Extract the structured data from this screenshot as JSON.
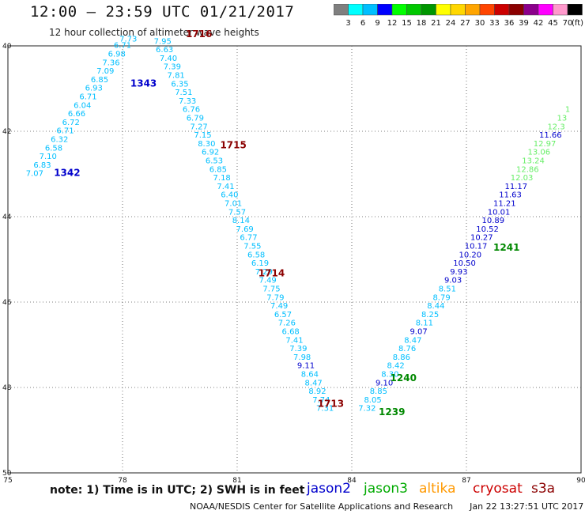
{
  "header": {
    "title": "12:00 — 23:59 UTC 01/21/2017",
    "subtitle": "12 hour collection of altimeter wave heights"
  },
  "color_scale": {
    "ticks": [
      "3",
      "6",
      "9",
      "12",
      "15",
      "18",
      "21",
      "24",
      "27",
      "30",
      "33",
      "36",
      "39",
      "42",
      "45",
      "70"
    ],
    "unit": "(ft)",
    "colors": [
      "#7f7f7f",
      "#00ffff",
      "#00bfff",
      "#0000ff",
      "#00ff00",
      "#00c800",
      "#009600",
      "#ffff00",
      "#ffd700",
      "#ffa500",
      "#ff4500",
      "#cc0000",
      "#8b0000",
      "#8b008b",
      "#ff00ff",
      "#ff99cc",
      "#000000"
    ]
  },
  "map": {
    "x_ticks": [
      "75",
      "78",
      "81",
      "84",
      "87",
      "90"
    ],
    "y_ticks": [
      "40",
      "42",
      "44",
      "46",
      "48",
      "50"
    ]
  },
  "chart_data": {
    "type": "scatter",
    "x_range": [
      75,
      90
    ],
    "y_range": [
      40,
      50
    ],
    "colors": {
      "c6": "#00bfff",
      "c9": "#00bfff",
      "c12": "#0000cc",
      "c15": "#66ee66",
      "c18": "#00aa00",
      "time_blue": "#0000cc",
      "time_red": "#8b0000",
      "time_green": "#008800"
    },
    "tracks": [
      {
        "name": "track-1342-1343",
        "points": [
          {
            "lon": 75.7,
            "lat": 43.05,
            "label": "7.07",
            "c": "c6"
          },
          {
            "lon": 75.9,
            "lat": 42.85,
            "label": "6.83",
            "c": "c6"
          },
          {
            "lon": 76.05,
            "lat": 42.65,
            "label": "7.10",
            "c": "c6"
          },
          {
            "lon": 76.2,
            "lat": 42.45,
            "label": "6.58",
            "c": "c6"
          },
          {
            "lon": 76.35,
            "lat": 42.25,
            "label": "6.32",
            "c": "c6"
          },
          {
            "lon": 76.5,
            "lat": 42.05,
            "label": "6.71",
            "c": "c6"
          },
          {
            "lon": 76.65,
            "lat": 41.85,
            "label": "6.72",
            "c": "c6"
          },
          {
            "lon": 76.8,
            "lat": 41.65,
            "label": "6.66",
            "c": "c6"
          },
          {
            "lon": 76.95,
            "lat": 41.45,
            "label": "6.04",
            "c": "c6"
          },
          {
            "lon": 77.1,
            "lat": 41.25,
            "label": "6.71",
            "c": "c6"
          },
          {
            "lon": 77.25,
            "lat": 41.05,
            "label": "6.93",
            "c": "c6"
          },
          {
            "lon": 77.4,
            "lat": 40.85,
            "label": "6.85",
            "c": "c6"
          },
          {
            "lon": 77.55,
            "lat": 40.65,
            "label": "7.09",
            "c": "c6"
          },
          {
            "lon": 77.7,
            "lat": 40.45,
            "label": "7.36",
            "c": "c6"
          },
          {
            "lon": 77.85,
            "lat": 40.25,
            "label": "6.98",
            "c": "c6"
          },
          {
            "lon": 78.0,
            "lat": 40.05,
            "label": "6.71",
            "c": "c6"
          },
          {
            "lon": 78.15,
            "lat": 39.9,
            "label": "7.73",
            "c": "c6"
          }
        ]
      },
      {
        "name": "track-1713-1716",
        "points": [
          {
            "lon": 79.05,
            "lat": 39.95,
            "label": "7.95",
            "c": "c6"
          },
          {
            "lon": 79.1,
            "lat": 40.15,
            "label": "6.63",
            "c": "c6"
          },
          {
            "lon": 79.2,
            "lat": 40.35,
            "label": "7.40",
            "c": "c6"
          },
          {
            "lon": 79.3,
            "lat": 40.55,
            "label": "7.39",
            "c": "c6"
          },
          {
            "lon": 79.4,
            "lat": 40.75,
            "label": "7.81",
            "c": "c6"
          },
          {
            "lon": 79.5,
            "lat": 40.95,
            "label": "6.35",
            "c": "c6"
          },
          {
            "lon": 79.6,
            "lat": 41.15,
            "label": "7.51",
            "c": "c6"
          },
          {
            "lon": 79.7,
            "lat": 41.35,
            "label": "7.33",
            "c": "c6"
          },
          {
            "lon": 79.8,
            "lat": 41.55,
            "label": "6.76",
            "c": "c6"
          },
          {
            "lon": 79.9,
            "lat": 41.75,
            "label": "6.79",
            "c": "c6"
          },
          {
            "lon": 80.0,
            "lat": 41.95,
            "label": "7.27",
            "c": "c6"
          },
          {
            "lon": 80.1,
            "lat": 42.15,
            "label": "7.15",
            "c": "c6"
          },
          {
            "lon": 80.2,
            "lat": 42.35,
            "label": "8.30",
            "c": "c6"
          },
          {
            "lon": 80.3,
            "lat": 42.55,
            "label": "6.92",
            "c": "c6"
          },
          {
            "lon": 80.4,
            "lat": 42.75,
            "label": "6.53",
            "c": "c6"
          },
          {
            "lon": 80.5,
            "lat": 42.95,
            "label": "6.85",
            "c": "c6"
          },
          {
            "lon": 80.6,
            "lat": 43.15,
            "label": "7.18",
            "c": "c6"
          },
          {
            "lon": 80.7,
            "lat": 43.35,
            "label": "7.41",
            "c": "c6"
          },
          {
            "lon": 80.8,
            "lat": 43.55,
            "label": "6.40",
            "c": "c6"
          },
          {
            "lon": 80.9,
            "lat": 43.75,
            "label": "7.01",
            "c": "c6"
          },
          {
            "lon": 81.0,
            "lat": 43.95,
            "label": "7.57",
            "c": "c6"
          },
          {
            "lon": 81.1,
            "lat": 44.15,
            "label": "8.14",
            "c": "c6"
          },
          {
            "lon": 81.2,
            "lat": 44.35,
            "label": "7.69",
            "c": "c6"
          },
          {
            "lon": 81.3,
            "lat": 44.55,
            "label": "6.77",
            "c": "c6"
          },
          {
            "lon": 81.4,
            "lat": 44.75,
            "label": "7.55",
            "c": "c6"
          },
          {
            "lon": 81.5,
            "lat": 44.95,
            "label": "6.58",
            "c": "c6"
          },
          {
            "lon": 81.6,
            "lat": 45.15,
            "label": "6.19",
            "c": "c6"
          },
          {
            "lon": 81.7,
            "lat": 45.35,
            "label": "7.29",
            "c": "c6"
          },
          {
            "lon": 81.8,
            "lat": 45.55,
            "label": "7.49",
            "c": "c6"
          },
          {
            "lon": 81.9,
            "lat": 45.75,
            "label": "7.75",
            "c": "c6"
          },
          {
            "lon": 82.0,
            "lat": 45.95,
            "label": "7.79",
            "c": "c6"
          },
          {
            "lon": 82.1,
            "lat": 46.15,
            "label": "7.49",
            "c": "c6"
          },
          {
            "lon": 82.2,
            "lat": 46.35,
            "label": "6.57",
            "c": "c6"
          },
          {
            "lon": 82.3,
            "lat": 46.55,
            "label": "7.26",
            "c": "c6"
          },
          {
            "lon": 82.4,
            "lat": 46.75,
            "label": "6.68",
            "c": "c6"
          },
          {
            "lon": 82.5,
            "lat": 46.95,
            "label": "7.41",
            "c": "c6"
          },
          {
            "lon": 82.6,
            "lat": 47.15,
            "label": "7.39",
            "c": "c6"
          },
          {
            "lon": 82.7,
            "lat": 47.35,
            "label": "7.98",
            "c": "c6"
          },
          {
            "lon": 82.8,
            "lat": 47.55,
            "label": "9.11",
            "c": "c12"
          },
          {
            "lon": 82.9,
            "lat": 47.75,
            "label": "8.64",
            "c": "c6"
          },
          {
            "lon": 83.0,
            "lat": 47.95,
            "label": "8.47",
            "c": "c6"
          },
          {
            "lon": 83.1,
            "lat": 48.15,
            "label": "8.92",
            "c": "c6"
          },
          {
            "lon": 83.2,
            "lat": 48.35,
            "label": "7.74",
            "c": "c6"
          },
          {
            "lon": 83.3,
            "lat": 48.55,
            "label": "7.31",
            "c": "c6"
          }
        ]
      },
      {
        "name": "track-1239-1241",
        "points": [
          {
            "lon": 84.4,
            "lat": 48.55,
            "label": "7.32",
            "c": "c6"
          },
          {
            "lon": 84.55,
            "lat": 48.35,
            "label": "8.05",
            "c": "c6"
          },
          {
            "lon": 84.7,
            "lat": 48.15,
            "label": "8.85",
            "c": "c6"
          },
          {
            "lon": 84.85,
            "lat": 47.95,
            "label": "9.10",
            "c": "c12"
          },
          {
            "lon": 85.0,
            "lat": 47.75,
            "label": "8.30",
            "c": "c6"
          },
          {
            "lon": 85.15,
            "lat": 47.55,
            "label": "8.42",
            "c": "c6"
          },
          {
            "lon": 85.3,
            "lat": 47.35,
            "label": "8.86",
            "c": "c6"
          },
          {
            "lon": 85.45,
            "lat": 47.15,
            "label": "8.76",
            "c": "c6"
          },
          {
            "lon": 85.6,
            "lat": 46.95,
            "label": "8.47",
            "c": "c6"
          },
          {
            "lon": 85.75,
            "lat": 46.75,
            "label": "9.07",
            "c": "c12"
          },
          {
            "lon": 85.9,
            "lat": 46.55,
            "label": "8.11",
            "c": "c6"
          },
          {
            "lon": 86.05,
            "lat": 46.35,
            "label": "8.25",
            "c": "c6"
          },
          {
            "lon": 86.2,
            "lat": 46.15,
            "label": "8.44",
            "c": "c6"
          },
          {
            "lon": 86.35,
            "lat": 45.95,
            "label": "8.79",
            "c": "c6"
          },
          {
            "lon": 86.5,
            "lat": 45.75,
            "label": "8.51",
            "c": "c6"
          },
          {
            "lon": 86.65,
            "lat": 45.55,
            "label": "9.03",
            "c": "c12"
          },
          {
            "lon": 86.8,
            "lat": 45.35,
            "label": "9.93",
            "c": "c12"
          },
          {
            "lon": 86.95,
            "lat": 45.15,
            "label": "10.50",
            "c": "c12"
          },
          {
            "lon": 87.1,
            "lat": 44.95,
            "label": "10.20",
            "c": "c12"
          },
          {
            "lon": 87.25,
            "lat": 44.75,
            "label": "10.17",
            "c": "c12"
          },
          {
            "lon": 87.4,
            "lat": 44.55,
            "label": "10.27",
            "c": "c12"
          },
          {
            "lon": 87.55,
            "lat": 44.35,
            "label": "10.52",
            "c": "c12"
          },
          {
            "lon": 87.7,
            "lat": 44.15,
            "label": "10.89",
            "c": "c12"
          },
          {
            "lon": 87.85,
            "lat": 43.95,
            "label": "10.01",
            "c": "c12"
          },
          {
            "lon": 88.0,
            "lat": 43.75,
            "label": "11.21",
            "c": "c12"
          },
          {
            "lon": 88.15,
            "lat": 43.55,
            "label": "11.63",
            "c": "c12"
          },
          {
            "lon": 88.3,
            "lat": 43.35,
            "label": "11.17",
            "c": "c12"
          },
          {
            "lon": 88.45,
            "lat": 43.15,
            "label": "12.03",
            "c": "c15"
          },
          {
            "lon": 88.6,
            "lat": 42.95,
            "label": "12.86",
            "c": "c15"
          },
          {
            "lon": 88.75,
            "lat": 42.75,
            "label": "13.24",
            "c": "c15"
          },
          {
            "lon": 88.9,
            "lat": 42.55,
            "label": "13.06",
            "c": "c15"
          },
          {
            "lon": 89.05,
            "lat": 42.35,
            "label": "12.97",
            "c": "c15"
          },
          {
            "lon": 89.2,
            "lat": 42.15,
            "label": "11.66",
            "c": "c12"
          },
          {
            "lon": 89.35,
            "lat": 41.95,
            "label": "12.3",
            "c": "c15"
          },
          {
            "lon": 89.5,
            "lat": 41.75,
            "label": "13",
            "c": "c15"
          },
          {
            "lon": 89.65,
            "lat": 41.55,
            "label": "1",
            "c": "c15"
          }
        ]
      }
    ],
    "time_labels": [
      {
        "lon": 76.55,
        "lat": 43.05,
        "label": "1342",
        "c": "time_blue"
      },
      {
        "lon": 78.55,
        "lat": 40.95,
        "label": "1343",
        "c": "time_blue"
      },
      {
        "lon": 80.0,
        "lat": 39.8,
        "label": "1716",
        "c": "time_red"
      },
      {
        "lon": 80.9,
        "lat": 42.4,
        "label": "1715",
        "c": "time_red"
      },
      {
        "lon": 81.9,
        "lat": 45.4,
        "label": "1714",
        "c": "time_red"
      },
      {
        "lon": 83.45,
        "lat": 48.45,
        "label": "1713",
        "c": "time_red"
      },
      {
        "lon": 85.05,
        "lat": 48.65,
        "label": "1239",
        "c": "time_green"
      },
      {
        "lon": 85.35,
        "lat": 47.85,
        "label": "1240",
        "c": "time_green"
      },
      {
        "lon": 88.05,
        "lat": 44.8,
        "label": "1241",
        "c": "time_green"
      }
    ]
  },
  "note": {
    "text": "note: 1) Time is in UTC; 2) SWH is in feet",
    "satellites": [
      {
        "name": "jason2",
        "color": "#0000cc"
      },
      {
        "name": "jason3",
        "color": "#00aa00"
      },
      {
        "name": "altika",
        "color": "#ff9900"
      },
      {
        "name": "cryosat",
        "color": "#cc0000"
      },
      {
        "name": "s3a",
        "color": "#8b0000"
      }
    ]
  },
  "footer": {
    "credit": "NOAA/NESDIS Center for Satellite Applications and Research",
    "timestamp": "Jan 22 13:27:51 UTC 2017"
  }
}
